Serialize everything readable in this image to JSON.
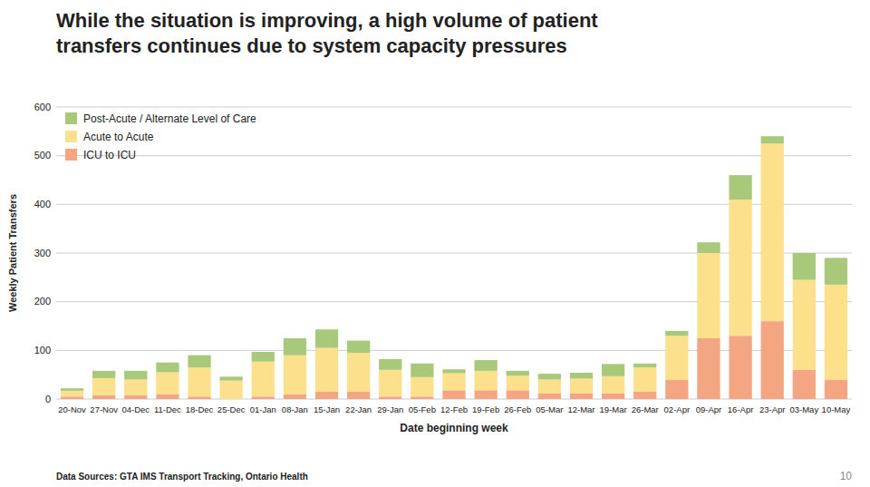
{
  "chart_data": {
    "type": "bar",
    "stacked": true,
    "title": "While the situation is improving, a high volume of patient\ntransfers continues due to system capacity pressures",
    "xlabel": "Date beginning week",
    "ylabel": "Weekly Patient Transfers",
    "annotations": [
      "Data Sources: GTA IMS Transport Tracking, Ontario Health",
      "10"
    ],
    "categories": [
      "20-Nov",
      "27-Nov",
      "04-Dec",
      "11-Dec",
      "18-Dec",
      "25-Dec",
      "01-Jan",
      "08-Jan",
      "15-Jan",
      "22-Jan",
      "29-Jan",
      "05-Feb",
      "12-Feb",
      "19-Feb",
      "26-Feb",
      "05-Mar",
      "12-Mar",
      "19-Mar",
      "26-Mar",
      "02-Apr",
      "09-Apr",
      "16-Apr",
      "23-Apr",
      "03-May",
      "10-May"
    ],
    "series": [
      {
        "name": "ICU to ICU",
        "color": "#f4a582",
        "values": [
          5,
          8,
          8,
          10,
          5,
          0,
          5,
          10,
          15,
          15,
          5,
          5,
          18,
          18,
          18,
          12,
          12,
          12,
          15,
          40,
          125,
          130,
          160,
          60,
          40
        ]
      },
      {
        "name": "Acute to Acute",
        "color": "#fde08c",
        "values": [
          12,
          35,
          32,
          45,
          60,
          38,
          72,
          80,
          90,
          80,
          55,
          40,
          35,
          40,
          30,
          28,
          30,
          35,
          50,
          90,
          175,
          280,
          365,
          185,
          195
        ]
      },
      {
        "name": "Post-Acute / Alternate Level of Care",
        "color": "#a8c87a",
        "values": [
          5,
          15,
          18,
          20,
          25,
          8,
          20,
          35,
          38,
          25,
          22,
          28,
          8,
          22,
          10,
          12,
          12,
          25,
          8,
          10,
          22,
          50,
          15,
          55,
          55
        ]
      }
    ],
    "ylim": [
      0,
      600
    ],
    "yticks": [
      0,
      100,
      200,
      300,
      400,
      500,
      600
    ],
    "grid": true,
    "legend": "upper left"
  }
}
